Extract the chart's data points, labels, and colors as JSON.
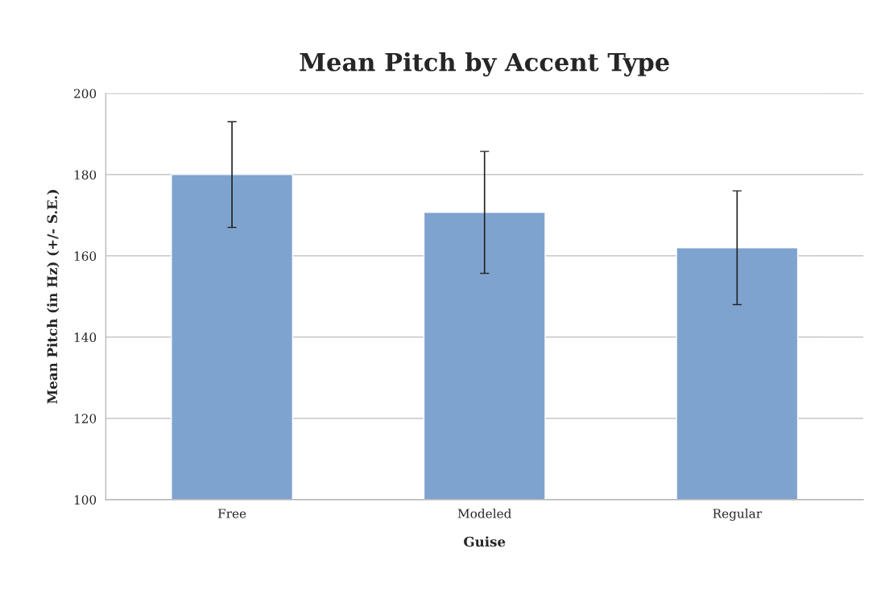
{
  "chart_data": {
    "type": "bar",
    "title": "Mean Pitch by Accent Type",
    "xlabel": "Guise",
    "ylabel": "Mean Pitch (in Hz) (+/- S.E.)",
    "categories": [
      "Free",
      "Modeled",
      "Regular"
    ],
    "values": [
      180,
      170.7,
      162
    ],
    "errors": [
      13,
      15,
      14
    ],
    "color": "#7fa3cf",
    "ylim": [
      100,
      200
    ],
    "yticks": [
      100,
      120,
      140,
      160,
      180,
      200
    ],
    "grid": "y"
  }
}
